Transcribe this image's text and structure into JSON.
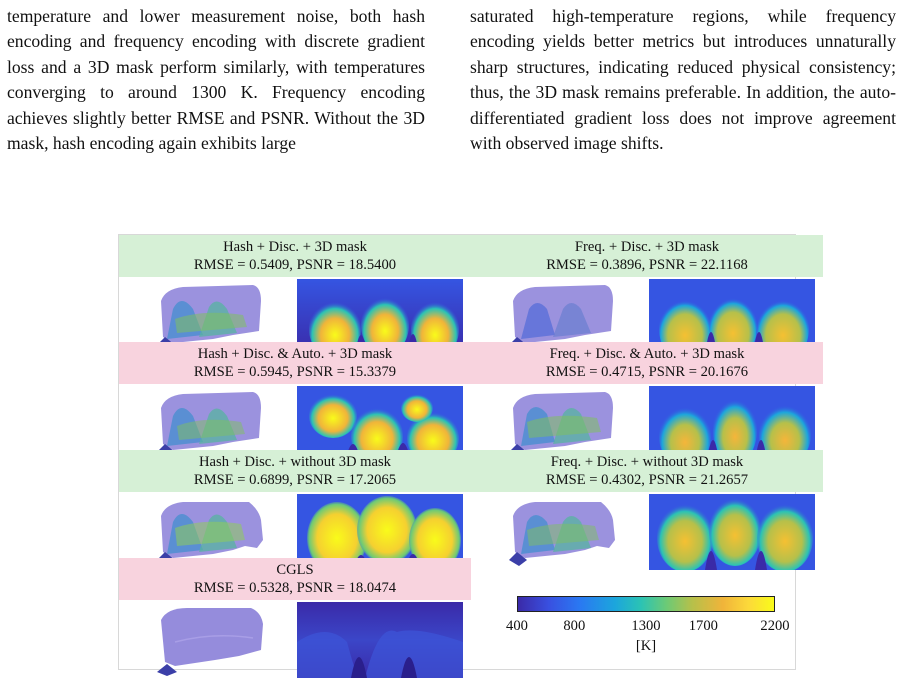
{
  "text_left": "temperature and lower measurement noise, both hash encoding and frequency encoding with discrete gradient loss and a 3D mask perform similarly, with temperatures converging to around 1300 K. Frequency encoding achieves slightly better RMSE and PSNR. Without the 3D mask, hash encoding again exhibits large",
  "text_right": "saturated high-temperature regions, while frequency encoding yields better metrics but introduces unnaturally sharp structures, indicating reduced physical consistency; thus, the 3D mask remains preferable. In addition, the auto-differentiated gradient loss does not improve agreement with observed image shifts.",
  "figure": {
    "panels": [
      {
        "title": "Hash + Disc. + 3D mask",
        "metrics": "RMSE = 0.5409, PSNR = 18.5400",
        "bg": "#d6f0d6"
      },
      {
        "title": "Freq. + Disc. + 3D mask",
        "metrics": "RMSE = 0.3896, PSNR = 22.1168",
        "bg": "#d6f0d6"
      },
      {
        "title": "Hash + Disc. & Auto. + 3D mask",
        "metrics": "RMSE = 0.5945, PSNR = 15.3379",
        "bg": "#f8d3de"
      },
      {
        "title": "Freq. + Disc. & Auto. + 3D mask",
        "metrics": "RMSE = 0.4715, PSNR = 20.1676",
        "bg": "#f8d3de"
      },
      {
        "title": "Hash + Disc. + without 3D mask",
        "metrics": "RMSE = 0.6899, PSNR = 17.2065",
        "bg": "#d6f0d6"
      },
      {
        "title": "Freq. + Disc. + without 3D mask",
        "metrics": "RMSE = 0.4302, PSNR = 21.2657",
        "bg": "#d6f0d6"
      },
      {
        "title": "CGLS",
        "metrics": "RMSE = 0.5328, PSNR = 18.0474",
        "bg": "#f8d3de"
      }
    ],
    "colorbar": {
      "ticks": [
        "400",
        "800",
        "1300",
        "1700",
        "2200"
      ],
      "tick_values": [
        400,
        800,
        1300,
        1700,
        2200
      ],
      "min": 400,
      "max": 2200,
      "unit": "[K]"
    }
  }
}
